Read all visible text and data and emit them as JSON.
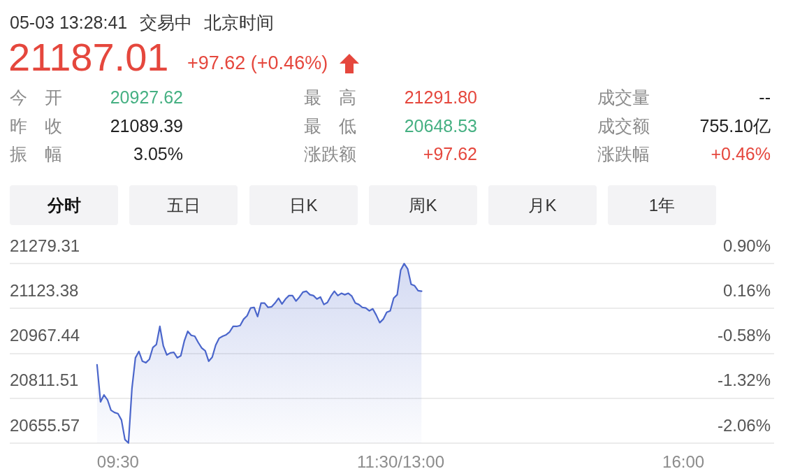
{
  "chart_data": {
    "type": "area",
    "annotations": [
      "05-03 13:28:41",
      "交易中",
      "北京时间",
      "21187.01",
      "+97.62 (+0.46%)",
      "今开",
      "20927.62",
      "最高",
      "21291.80",
      "成交量",
      "--",
      "昨收",
      "21089.39",
      "最低",
      "20648.53",
      "成交额",
      "755.10亿",
      "振幅",
      "3.05%",
      "涨跌额",
      "+97.62",
      "涨跌幅",
      "+0.46%",
      "分时",
      "五日",
      "日K",
      "周K",
      "月K",
      "1年"
    ],
    "categories": [
      null,
      null,
      null,
      null,
      null,
      null,
      null,
      null,
      null,
      null,
      null,
      null,
      null,
      null,
      null,
      null,
      null,
      null,
      null,
      null,
      null,
      null,
      null,
      null,
      null,
      null,
      null,
      null,
      null,
      null,
      null,
      "09:30",
      null,
      null,
      null,
      null,
      null,
      null,
      null,
      null,
      null,
      null,
      null,
      null,
      null,
      null,
      null,
      null,
      null,
      null,
      null,
      null,
      null,
      null,
      null,
      null,
      null,
      null,
      null,
      null,
      null,
      null,
      null,
      null,
      null,
      null,
      null,
      null,
      null,
      null,
      null,
      null,
      null,
      null,
      null,
      null,
      null,
      null,
      null,
      null,
      null,
      null,
      null,
      null,
      null,
      null,
      null,
      null,
      null,
      null,
      null,
      null,
      null,
      null,
      null,
      null,
      null,
      null,
      null,
      null,
      null,
      null,
      null,
      null,
      null,
      null,
      null,
      null,
      null,
      null,
      null,
      null,
      "11:30/13:00",
      null,
      null,
      null,
      null,
      null,
      null,
      null,
      null,
      null,
      null,
      null,
      null,
      null,
      null,
      null,
      null,
      null,
      null,
      null,
      null,
      null,
      null,
      null,
      null,
      null,
      null,
      null,
      null,
      null,
      null,
      null,
      null,
      null,
      null,
      null,
      null,
      null,
      null,
      null,
      null,
      null,
      null,
      null,
      null,
      null,
      null,
      null,
      null,
      null,
      null,
      null,
      null,
      null,
      null,
      null,
      null,
      null,
      null,
      null,
      null,
      null,
      null,
      null,
      null,
      null,
      null,
      null,
      null,
      null,
      null,
      null,
      null,
      null,
      null,
      null,
      null,
      null,
      null,
      null,
      null,
      "16:00",
      null,
      null,
      null,
      null,
      null,
      null,
      null,
      null,
      null,
      null,
      null,
      null,
      null,
      null,
      null,
      null,
      null,
      null,
      null,
      null,
      null,
      null,
      null,
      null,
      null,
      null
    ],
    "series": [
      {
        "color": "#4b66cb",
        "values": [
          null,
          null,
          null,
          null,
          null,
          null,
          null,
          null,
          null,
          null,
          null,
          null,
          null,
          null,
          null,
          null,
          null,
          null,
          null,
          null,
          null,
          null,
          null,
          null,
          null,
          20928,
          20799,
          20823,
          20806,
          20770,
          20762,
          20758,
          20736,
          20668,
          20656,
          20845,
          20952,
          20974,
          20940,
          20935,
          20947,
          20988,
          20998,
          21061,
          20993,
          20962,
          20969,
          20971,
          20952,
          20959,
          21010,
          21044,
          21030,
          21027,
          21005,
          20986,
          20976,
          20940,
          20954,
          20996,
          21020,
          21027,
          21032,
          21042,
          21061,
          21061,
          21064,
          21086,
          21098,
          21125,
          21127,
          21095,
          21142,
          21142,
          21127,
          21129,
          21142,
          21159,
          21139,
          21156,
          21168,
          21168,
          21149,
          21163,
          21180,
          21183,
          21171,
          21168,
          21156,
          21163,
          21137,
          21144,
          21166,
          21183,
          21168,
          21176,
          21171,
          21176,
          21166,
          21142,
          21137,
          21127,
          21125,
          21115,
          21122,
          21100,
          21074,
          21086,
          21110,
          21115,
          21159,
          21171,
          21256,
          21279,
          21261,
          21207,
          21202,
          21185,
          21183,
          null,
          null,
          null,
          null,
          null,
          null,
          null,
          null,
          null,
          null,
          null,
          null,
          null,
          null,
          null,
          null,
          null,
          null,
          null,
          null,
          null,
          null,
          null,
          null,
          null,
          null,
          null,
          null,
          null,
          null,
          null,
          null,
          null,
          null,
          null,
          null,
          null,
          null,
          null,
          null,
          null,
          null,
          null,
          null,
          null,
          null,
          null,
          null,
          null,
          null,
          null,
          null,
          null,
          null,
          null,
          null,
          null,
          null,
          null,
          null,
          null,
          null,
          null,
          null,
          null,
          null,
          null,
          null,
          null,
          null,
          null,
          null,
          null,
          null,
          null,
          null,
          null,
          null,
          null,
          null,
          null,
          null,
          null,
          null,
          null,
          null,
          null,
          null,
          null,
          null,
          null,
          null,
          null,
          null,
          null,
          null,
          null,
          null,
          null,
          null,
          null
        ]
      }
    ],
    "ylim": [
      20655.57,
      21279.31
    ],
    "yticks": [
      20655.57,
      20811.51,
      20967.44,
      21123.38,
      21279.31
    ],
    "y2lim": [
      -2.057,
      0.9006
    ],
    "y2ticks": [
      {
        "value": -2.057,
        "label": "-2.06%"
      },
      {
        "value": -1.3176,
        "label": "-1.32%"
      },
      {
        "value": -0.5783,
        "label": "-0.58%"
      },
      {
        "value": 0.1612,
        "label": "0.16%"
      },
      {
        "value": 0.9006,
        "label": "0.90%"
      }
    ],
    "grid": "y"
  }
}
